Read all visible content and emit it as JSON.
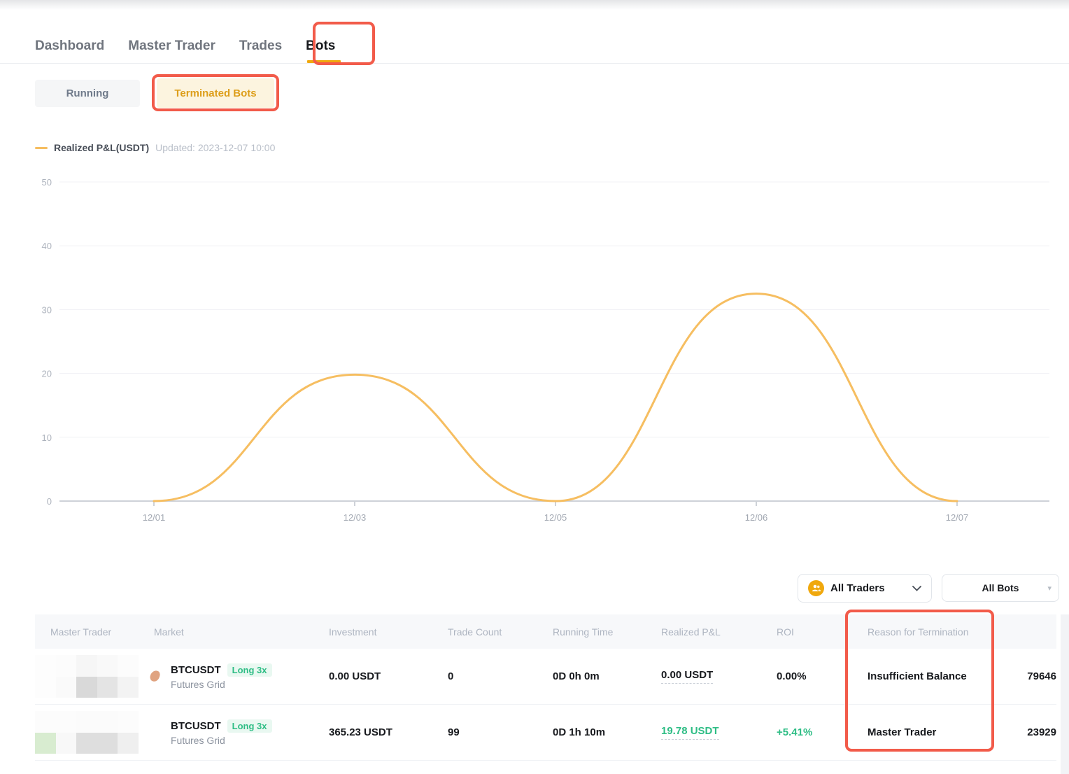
{
  "colors": {
    "accent_yellow": "#F0A80D",
    "chart_line": "#F6BE61",
    "annotation_red": "#F25B4A",
    "positive_green": "#2EBD85",
    "terminated_tab_text": "#DD9E1A",
    "terminated_tab_bg": "#FCF4DF"
  },
  "nav_tabs": {
    "items": [
      {
        "label": "Dashboard",
        "active": false
      },
      {
        "label": "Master Trader",
        "active": false
      },
      {
        "label": "Trades",
        "active": false
      },
      {
        "label": "Bots",
        "active": true
      }
    ]
  },
  "subtabs": {
    "running_label": "Running",
    "terminated_label": "Terminated Bots"
  },
  "chart_data": {
    "type": "line",
    "x": [
      "12/01",
      "12/03",
      "12/05",
      "12/06",
      "12/07"
    ],
    "series": [
      {
        "name": "Realized P&L(USDT)",
        "values": [
          0,
          19.8,
          0,
          32.5,
          0
        ],
        "color": "#F6BE61"
      }
    ],
    "ylim": [
      0,
      50
    ],
    "yticks": [
      0,
      10,
      20,
      30,
      40,
      50
    ],
    "smooth": true,
    "grid": true,
    "legend_position": "top-left",
    "legend": {
      "label": "Realized P&L(USDT)",
      "updated": "Updated: 2023-12-07 10:00"
    }
  },
  "filters": {
    "traders_label": "All Traders",
    "bots_label": "All Bots"
  },
  "table": {
    "headers": [
      "Master Trader",
      "Market",
      "Investment",
      "Trade Count",
      "Running Time",
      "Realized P&L",
      "ROI",
      "Reason for Termination"
    ],
    "rows": [
      {
        "market_symbol": "BTCUSDT",
        "market_badge": "Long 3x",
        "market_type": "Futures Grid",
        "investment": "0.00 USDT",
        "trade_count": "0",
        "running_time": "0D 0h 0m",
        "realized_pnl": "0.00 USDT",
        "pnl_positive": false,
        "roi": "0.00%",
        "roi_positive": false,
        "reason": "Insufficient Balance",
        "trailing_value": "79646"
      },
      {
        "market_symbol": "BTCUSDT",
        "market_badge": "Long 3x",
        "market_type": "Futures Grid",
        "investment": "365.23 USDT",
        "trade_count": "99",
        "running_time": "0D 1h 10m",
        "realized_pnl": "19.78 USDT",
        "pnl_positive": true,
        "roi": "+5.41%",
        "roi_positive": true,
        "reason": "Master Trader",
        "trailing_value": "23929"
      }
    ]
  }
}
